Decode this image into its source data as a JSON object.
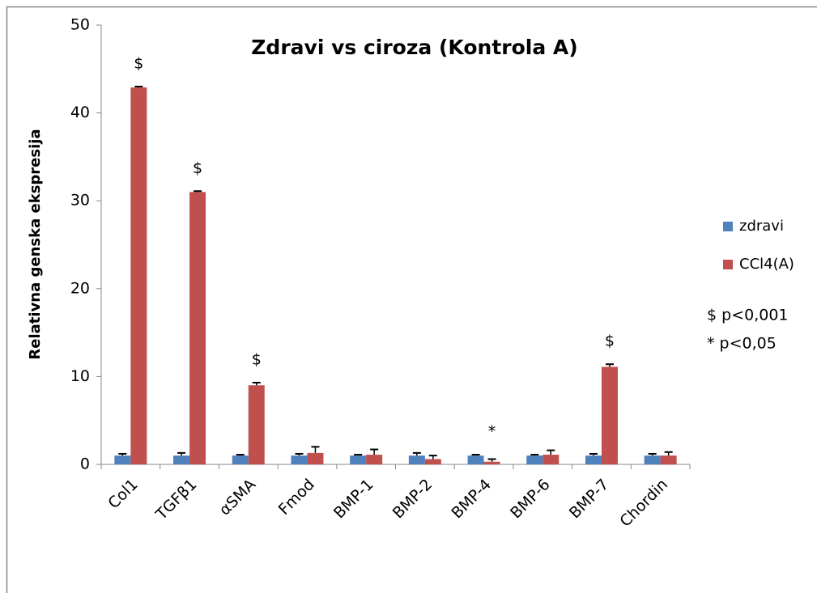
{
  "chart_data": {
    "type": "bar",
    "title": "Zdravi vs ciroza (Kontrola A)",
    "y_label": "Relativna genska ekspresija",
    "categories": [
      "Col1",
      "TGFβ1",
      "αSMA",
      "Fmod",
      "BMP-1",
      "BMP-2",
      "BMP-4",
      "BMP-6",
      "BMP-7",
      "Chordin"
    ],
    "series": [
      {
        "name": "zdravi",
        "color": "#4f81bd",
        "values": [
          1,
          1,
          1,
          1,
          1,
          1,
          1,
          1,
          1,
          1
        ],
        "errors": [
          0.2,
          0.3,
          0.1,
          0.2,
          0.1,
          0.3,
          0.1,
          0.1,
          0.2,
          0.2
        ]
      },
      {
        "name": "CCl4(A)",
        "color": "#c0504d",
        "values": [
          42.9,
          31.0,
          9.0,
          1.3,
          1.1,
          0.6,
          0.3,
          1.1,
          11.1,
          1.0
        ],
        "errors": [
          0.1,
          0.1,
          0.3,
          0.7,
          0.6,
          0.4,
          0.3,
          0.5,
          0.3,
          0.4
        ]
      }
    ],
    "annotations": [
      {
        "text": "$",
        "category": "Col1"
      },
      {
        "text": "$",
        "category": "TGFβ1"
      },
      {
        "text": "$",
        "category": "αSMA"
      },
      {
        "text": "*",
        "category": "BMP-4"
      },
      {
        "text": "$",
        "category": "BMP-7"
      }
    ],
    "notes": [
      "$ p<0,001",
      "* p<0,05"
    ],
    "ylim": [
      0,
      50
    ],
    "yticks": [
      0,
      10,
      20,
      30,
      40,
      50
    ],
    "grid": false,
    "legend": "right"
  }
}
